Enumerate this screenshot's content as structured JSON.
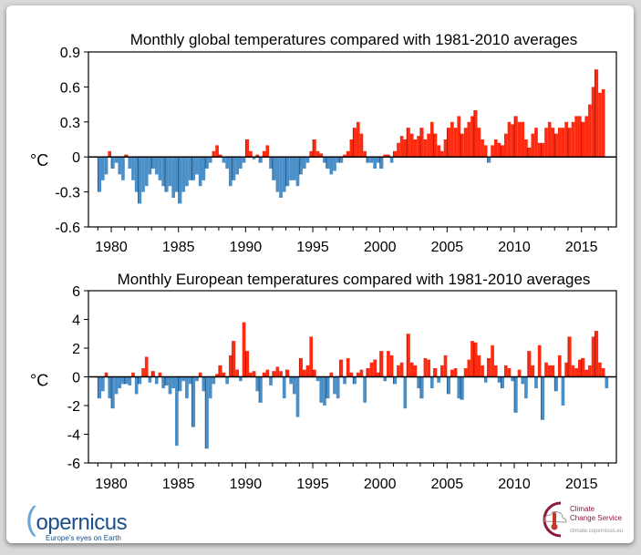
{
  "colors": {
    "positive": "#ff2a10",
    "negative": "#4a8fc7",
    "axis": "#000000"
  },
  "chart_data": [
    {
      "type": "bar",
      "title": "Monthly global temperatures compared with 1981-2010 averages",
      "ylabel": "°C",
      "ylim": [
        -0.6,
        0.9
      ],
      "yticks": [
        "0.9",
        "0.6",
        "0.3",
        "0",
        "-0.3",
        "-0.6"
      ],
      "xlim": [
        1978.3,
        2017.6
      ],
      "xticks": [
        "1980",
        "1985",
        "1990",
        "1995",
        "2000",
        "2005",
        "2010",
        "2015"
      ],
      "x_start": 1979,
      "step": "quarter (approximate reading of monthly bars)",
      "values": [
        -0.3,
        -0.2,
        -0.15,
        0.05,
        -0.1,
        -0.05,
        -0.15,
        -0.2,
        0.02,
        -0.1,
        -0.2,
        -0.3,
        -0.4,
        -0.3,
        -0.25,
        -0.15,
        -0.1,
        -0.15,
        -0.2,
        -0.25,
        -0.3,
        -0.25,
        -0.35,
        -0.3,
        -0.4,
        -0.3,
        -0.25,
        -0.2,
        -0.2,
        -0.15,
        -0.25,
        -0.2,
        -0.1,
        -0.05,
        0.05,
        0.1,
        0.02,
        -0.05,
        -0.1,
        -0.25,
        -0.2,
        -0.15,
        -0.1,
        -0.05,
        0.15,
        0.05,
        -0.02,
        0.02,
        -0.05,
        0.05,
        0.1,
        -0.1,
        -0.2,
        -0.3,
        -0.35,
        -0.3,
        -0.25,
        -0.2,
        -0.2,
        -0.25,
        -0.15,
        -0.1,
        -0.05,
        0.05,
        0.15,
        0.05,
        0.03,
        -0.05,
        -0.1,
        -0.15,
        -0.12,
        -0.05,
        -0.05,
        0.02,
        0.05,
        0.15,
        0.25,
        0.3,
        0.2,
        0.05,
        -0.05,
        -0.05,
        -0.1,
        -0.05,
        -0.1,
        0.02,
        0.02,
        -0.05,
        0.05,
        0.12,
        0.18,
        0.15,
        0.25,
        0.2,
        0.15,
        0.18,
        0.25,
        0.15,
        0.2,
        0.3,
        0.2,
        0.1,
        0.05,
        0.15,
        0.25,
        0.3,
        0.25,
        0.35,
        0.2,
        0.25,
        0.3,
        0.35,
        0.4,
        0.25,
        0.15,
        0.1,
        -0.05,
        0.1,
        0.15,
        0.12,
        0.1,
        0.2,
        0.3,
        0.28,
        0.35,
        0.3,
        0.3,
        0.15,
        0.08,
        0.2,
        0.25,
        0.12,
        0.12,
        0.25,
        0.3,
        0.25,
        0.2,
        0.25,
        0.25,
        0.3,
        0.25,
        0.3,
        0.35,
        0.35,
        0.3,
        0.35,
        0.45,
        0.6,
        0.75,
        0.55,
        0.58
      ]
    },
    {
      "type": "bar",
      "title": "Monthly European temperatures compared with 1981-2010 averages",
      "ylabel": "°C",
      "ylim": [
        -6,
        6
      ],
      "yticks": [
        "6",
        "4",
        "2",
        "0",
        "-2",
        "-4",
        "-6"
      ],
      "xlim": [
        1978.3,
        2017.6
      ],
      "xticks": [
        "1980",
        "1985",
        "1990",
        "1995",
        "2000",
        "2005",
        "2010",
        "2015"
      ],
      "x_start": 1979,
      "step": "quarter (approximate reading of monthly bars)",
      "values": [
        -1.5,
        -1.0,
        0.3,
        -1.5,
        -2.2,
        -1.2,
        -0.8,
        -0.5,
        -0.5,
        -0.6,
        0.3,
        -1.2,
        -0.5,
        0.6,
        1.4,
        -0.4,
        0.4,
        -0.5,
        0.3,
        -0.8,
        -0.6,
        -1.2,
        -0.8,
        -4.8,
        -1.0,
        -0.3,
        -1.5,
        -0.5,
        -3.5,
        -0.3,
        0.3,
        -1.0,
        -5.0,
        -1.5,
        -0.5,
        0.2,
        0.8,
        0.3,
        -0.5,
        1.5,
        2.5,
        0.5,
        -0.3,
        3.8,
        1.8,
        0.3,
        0.4,
        -1.0,
        -1.8,
        0.3,
        0.5,
        -0.6,
        0.4,
        0.7,
        0.4,
        -1.5,
        0.5,
        -0.5,
        -1.2,
        -2.8,
        1.3,
        0.5,
        0.8,
        2.8,
        0.5,
        -0.3,
        -1.8,
        -2.0,
        -1.5,
        0.3,
        -1.2,
        -1.5,
        1.2,
        -0.5,
        1.3,
        0.3,
        -0.5,
        0.3,
        0.5,
        -1.8,
        0.6,
        1.0,
        1.2,
        0.3,
        1.8,
        -0.3,
        1.8,
        1.5,
        -0.5,
        0.8,
        1.0,
        -2.2,
        3.0,
        1.0,
        0.8,
        -0.8,
        -1.5,
        1.3,
        1.2,
        -0.8,
        0.6,
        -0.4,
        0.8,
        1.5,
        -1.2,
        0.5,
        0.6,
        -1.5,
        -1.6,
        0.6,
        1.2,
        2.5,
        2.4,
        1.5,
        0.8,
        -0.4,
        1.3,
        2.2,
        0.8,
        -0.4,
        -0.8,
        0.8,
        0.6,
        -0.3,
        -2.5,
        0.5,
        -0.5,
        -1.5,
        1.8,
        0.8,
        -0.8,
        2.2,
        -3.0,
        1.0,
        0.8,
        0.8,
        -1.0,
        1.5,
        -2.0,
        1.0,
        2.8,
        0.8,
        0.6,
        1.2,
        1.3,
        0.5,
        0.8,
        2.8,
        3.2,
        1.0,
        0.6,
        -0.8
      ]
    }
  ],
  "logos": {
    "copernicus": {
      "name": "opernicus",
      "tagline": "Europe's eyes on Earth"
    },
    "c3s": {
      "line1": "Climate",
      "line2": "Change Service",
      "url": "climate.copernicus.eu"
    }
  }
}
